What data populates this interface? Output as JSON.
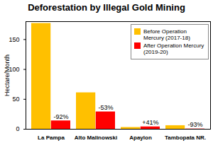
{
  "chart_data": {
    "type": "bar",
    "title": "Deforestation by Illegal Gold Mining",
    "y_label": "Hectare/Month",
    "categories": [
      "La Pampa",
      "Alto Malinowski",
      "Apaylon",
      "Tambopata NR."
    ],
    "series": [
      {
        "name": "Before Operation Mercury (2017-18)",
        "color": "#FFC000",
        "values": [
          177,
          61,
          3,
          6
        ]
      },
      {
        "name": "After Operation Mercury (2019-20)",
        "color": "#FF0000",
        "values": [
          14,
          29,
          4,
          0.4
        ],
        "annotations": [
          "-92%",
          "-53%",
          "+41%",
          "-93%"
        ]
      }
    ],
    "ylim": [
      0,
      180
    ],
    "yticks": [
      0,
      50,
      100,
      150
    ],
    "grid": false,
    "legend": "top right"
  }
}
